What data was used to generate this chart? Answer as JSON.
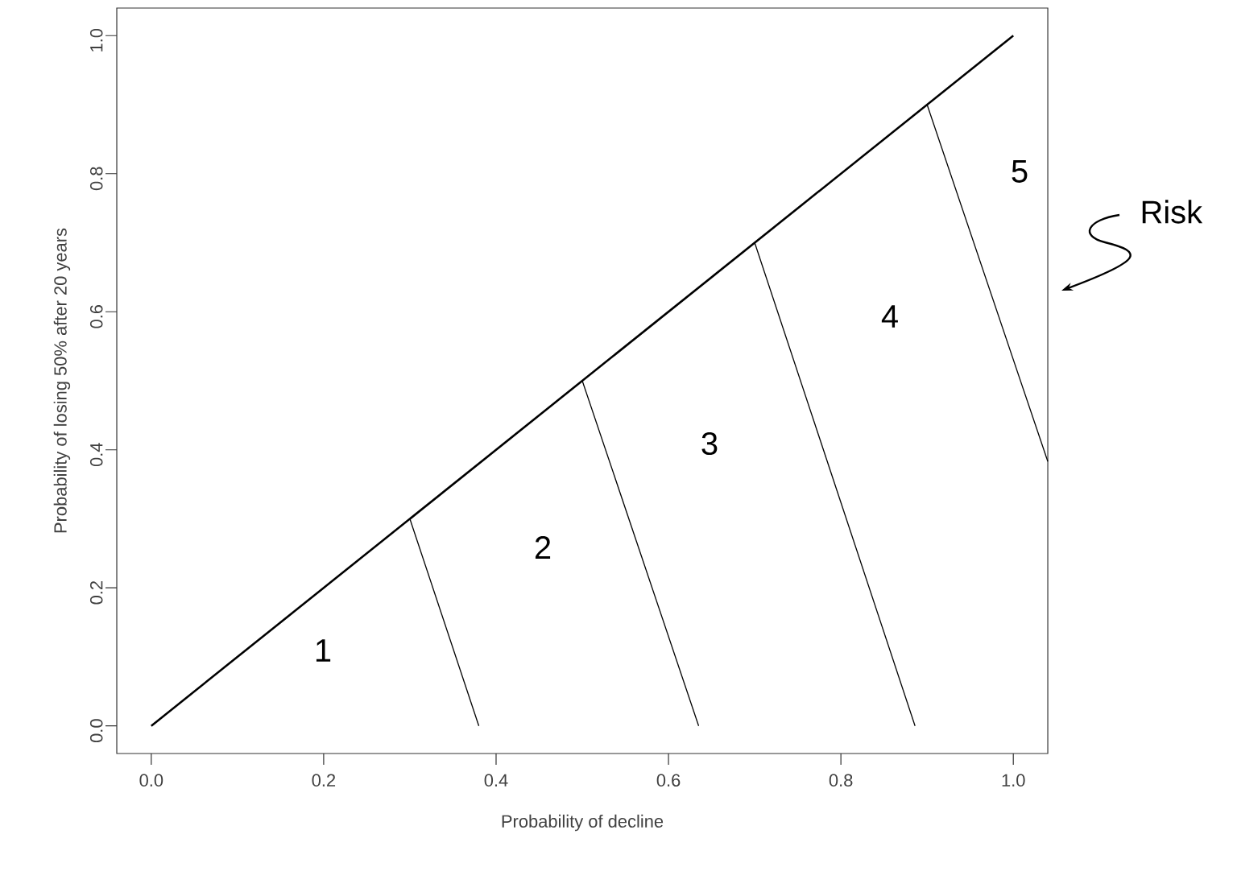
{
  "chart_data": {
    "type": "line",
    "xlabel": "Probability of decline",
    "ylabel": "Probability of losing 50% after 20 years",
    "xlim": [
      -0.04,
      1.04
    ],
    "ylim": [
      -0.04,
      1.04
    ],
    "xticks": [
      {
        "value": 0,
        "label": "0.0"
      },
      {
        "value": 0.2,
        "label": "0.2"
      },
      {
        "value": 0.4,
        "label": "0.4"
      },
      {
        "value": 0.6,
        "label": "0.6"
      },
      {
        "value": 0.8,
        "label": "0.8"
      },
      {
        "value": 1,
        "label": "1.0"
      }
    ],
    "yticks": [
      {
        "value": 0,
        "label": "0.0"
      },
      {
        "value": 0.2,
        "label": "0.2"
      },
      {
        "value": 0.4,
        "label": "0.4"
      },
      {
        "value": 0.6,
        "label": "0.6"
      },
      {
        "value": 0.8,
        "label": "0.8"
      },
      {
        "value": 1,
        "label": "1.0"
      }
    ],
    "series": [
      {
        "color": "#000000",
        "x": [
          0,
          1
        ],
        "values": [
          0,
          1
        ]
      },
      {
        "color": "#000000",
        "x": [
          0.3,
          0.38
        ],
        "values": [
          0.3,
          0
        ]
      },
      {
        "color": "#000000",
        "x": [
          0.5,
          0.635
        ],
        "values": [
          0.5,
          0
        ]
      },
      {
        "color": "#000000",
        "x": [
          0.7,
          0.886
        ],
        "values": [
          0.7,
          0
        ]
      },
      {
        "color": "#000000",
        "x": [
          0.9,
          1.04
        ],
        "values": [
          0.9,
          0.383
        ]
      }
    ],
    "annotations": [
      "1",
      "2",
      "3",
      "4",
      "5",
      "Risk"
    ]
  }
}
